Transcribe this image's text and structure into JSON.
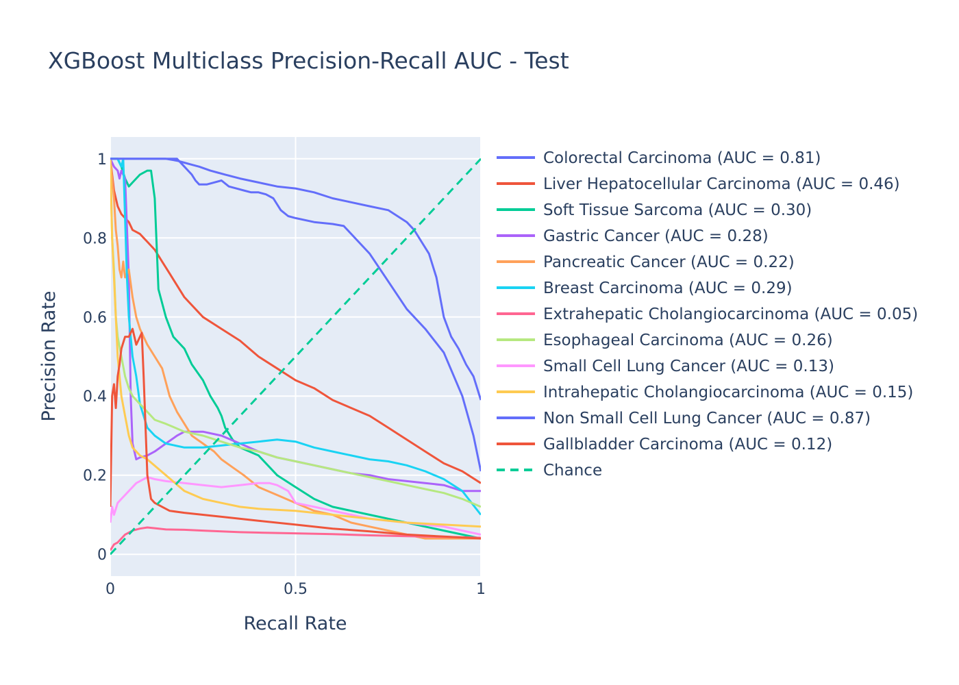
{
  "chart_data": {
    "type": "line",
    "title": "XGBoost Multiclass Precision-Recall AUC - Test",
    "xlabel": "Recall Rate",
    "ylabel": "Precision Rate",
    "xlim": [
      0,
      1
    ],
    "ylim": [
      -0.055,
      1.055
    ],
    "x_ticks": [
      {
        "v": 0,
        "label": "0"
      },
      {
        "v": 0.5,
        "label": "0.5"
      },
      {
        "v": 1,
        "label": "1"
      }
    ],
    "y_ticks": [
      {
        "v": 0,
        "label": "0"
      },
      {
        "v": 0.2,
        "label": "0.2"
      },
      {
        "v": 0.4,
        "label": "0.4"
      },
      {
        "v": 0.6,
        "label": "0.6"
      },
      {
        "v": 0.8,
        "label": "0.8"
      },
      {
        "v": 1,
        "label": "1"
      }
    ],
    "grid": true,
    "legend_position": "right",
    "plot_background": "#e5ecf6",
    "series": [
      {
        "name": "Colorectal Carcinoma (AUC = 0.81)",
        "color": "#636efa",
        "dash": false,
        "x": [
          0,
          0.05,
          0.1,
          0.15,
          0.18,
          0.2,
          0.22,
          0.24,
          0.27,
          0.29,
          0.31,
          0.35,
          0.4,
          0.45,
          0.5,
          0.55,
          0.6,
          0.65,
          0.7,
          0.75,
          0.8,
          0.82,
          0.84,
          0.86,
          0.88,
          0.9,
          0.92,
          0.94,
          0.96,
          0.98,
          1.0
        ],
        "y": [
          1,
          1,
          1,
          1,
          0.995,
          0.99,
          0.985,
          0.98,
          0.97,
          0.965,
          0.96,
          0.95,
          0.94,
          0.93,
          0.925,
          0.915,
          0.9,
          0.89,
          0.88,
          0.87,
          0.84,
          0.82,
          0.79,
          0.76,
          0.7,
          0.6,
          0.55,
          0.52,
          0.48,
          0.45,
          0.39
        ]
      },
      {
        "name": "Liver Hepatocellular Carcinoma (AUC = 0.46)",
        "color": "#ef553b",
        "dash": false,
        "x": [
          0,
          0.01,
          0.02,
          0.03,
          0.04,
          0.05,
          0.06,
          0.07,
          0.08,
          0.09,
          0.1,
          0.12,
          0.14,
          0.16,
          0.18,
          0.2,
          0.25,
          0.3,
          0.35,
          0.4,
          0.45,
          0.5,
          0.55,
          0.6,
          0.65,
          0.7,
          0.75,
          0.8,
          0.85,
          0.9,
          0.95,
          1.0
        ],
        "y": [
          1,
          0.92,
          0.88,
          0.86,
          0.85,
          0.84,
          0.82,
          0.815,
          0.81,
          0.8,
          0.79,
          0.77,
          0.74,
          0.71,
          0.68,
          0.65,
          0.6,
          0.57,
          0.54,
          0.5,
          0.47,
          0.44,
          0.42,
          0.39,
          0.37,
          0.35,
          0.32,
          0.29,
          0.26,
          0.23,
          0.21,
          0.18
        ]
      },
      {
        "name": "Soft Tissue Sarcoma (AUC = 0.30)",
        "color": "#00cc96",
        "dash": false,
        "x": [
          0,
          0.02,
          0.03,
          0.04,
          0.05,
          0.06,
          0.08,
          0.1,
          0.11,
          0.12,
          0.13,
          0.15,
          0.17,
          0.2,
          0.22,
          0.25,
          0.27,
          0.29,
          0.3,
          0.31,
          0.33,
          0.35,
          0.4,
          0.45,
          0.5,
          0.55,
          0.6,
          0.65,
          0.7,
          0.75,
          0.8,
          0.85,
          0.9,
          0.95,
          1.0
        ],
        "y": [
          1,
          1,
          0.98,
          0.95,
          0.93,
          0.94,
          0.96,
          0.97,
          0.97,
          0.9,
          0.67,
          0.6,
          0.55,
          0.52,
          0.48,
          0.44,
          0.4,
          0.37,
          0.35,
          0.32,
          0.29,
          0.27,
          0.25,
          0.2,
          0.17,
          0.14,
          0.12,
          0.11,
          0.1,
          0.09,
          0.08,
          0.07,
          0.06,
          0.05,
          0.04
        ]
      },
      {
        "name": "Gastric Cancer (AUC = 0.28)",
        "color": "#ab63fa",
        "dash": false,
        "x": [
          0,
          0.01,
          0.02,
          0.025,
          0.03,
          0.04,
          0.05,
          0.055,
          0.06,
          0.07,
          0.08,
          0.1,
          0.12,
          0.15,
          0.18,
          0.2,
          0.25,
          0.3,
          0.35,
          0.4,
          0.45,
          0.5,
          0.55,
          0.6,
          0.65,
          0.7,
          0.75,
          0.8,
          0.85,
          0.9,
          0.95,
          1.0
        ],
        "y": [
          1,
          0.98,
          0.97,
          0.95,
          0.97,
          0.95,
          0.7,
          0.4,
          0.28,
          0.24,
          0.245,
          0.25,
          0.26,
          0.28,
          0.3,
          0.31,
          0.31,
          0.3,
          0.28,
          0.26,
          0.245,
          0.235,
          0.225,
          0.215,
          0.205,
          0.2,
          0.19,
          0.185,
          0.18,
          0.175,
          0.16,
          0.16
        ]
      },
      {
        "name": "Pancreatic Cancer (AUC = 0.22)",
        "color": "#ffa15a",
        "dash": false,
        "x": [
          0,
          0.005,
          0.01,
          0.015,
          0.02,
          0.025,
          0.03,
          0.035,
          0.04,
          0.05,
          0.06,
          0.07,
          0.08,
          0.1,
          0.12,
          0.14,
          0.16,
          0.18,
          0.2,
          0.22,
          0.25,
          0.28,
          0.3,
          0.33,
          0.36,
          0.4,
          0.45,
          0.5,
          0.55,
          0.6,
          0.65,
          0.7,
          0.75,
          0.8,
          0.85,
          0.9,
          0.95,
          1.0
        ],
        "y": [
          1,
          0.95,
          0.9,
          0.82,
          0.78,
          0.72,
          0.7,
          0.74,
          0.7,
          0.72,
          0.65,
          0.6,
          0.57,
          0.53,
          0.5,
          0.47,
          0.4,
          0.36,
          0.33,
          0.3,
          0.28,
          0.26,
          0.24,
          0.22,
          0.2,
          0.17,
          0.15,
          0.13,
          0.11,
          0.1,
          0.08,
          0.07,
          0.06,
          0.05,
          0.04,
          0.04,
          0.04,
          0.04
        ]
      },
      {
        "name": "Breast Carcinoma (AUC = 0.29)",
        "color": "#19d3f3",
        "dash": false,
        "x": [
          0,
          0.02,
          0.03,
          0.035,
          0.04,
          0.045,
          0.05,
          0.055,
          0.06,
          0.07,
          0.08,
          0.1,
          0.12,
          0.15,
          0.2,
          0.25,
          0.3,
          0.35,
          0.4,
          0.45,
          0.5,
          0.55,
          0.6,
          0.65,
          0.7,
          0.75,
          0.8,
          0.85,
          0.9,
          0.95,
          1.0
        ],
        "y": [
          1,
          1,
          0.98,
          1.0,
          0.85,
          0.7,
          0.6,
          0.55,
          0.5,
          0.45,
          0.38,
          0.32,
          0.3,
          0.28,
          0.27,
          0.27,
          0.275,
          0.28,
          0.285,
          0.29,
          0.285,
          0.27,
          0.26,
          0.25,
          0.24,
          0.235,
          0.225,
          0.21,
          0.19,
          0.16,
          0.1
        ]
      },
      {
        "name": "Extrahepatic Cholangiocarcinoma (AUC = 0.05)",
        "color": "#ff6692",
        "dash": false,
        "x": [
          0,
          0.01,
          0.02,
          0.03,
          0.04,
          0.06,
          0.08,
          0.1,
          0.12,
          0.15,
          0.2,
          0.25,
          0.3,
          0.35,
          0.4,
          0.5,
          0.6,
          0.7,
          0.8,
          0.9,
          1.0
        ],
        "y": [
          0.01,
          0.025,
          0.03,
          0.04,
          0.05,
          0.06,
          0.065,
          0.068,
          0.066,
          0.063,
          0.062,
          0.06,
          0.058,
          0.056,
          0.055,
          0.053,
          0.051,
          0.048,
          0.046,
          0.044,
          0.042
        ]
      },
      {
        "name": "Esophageal Carcinoma (AUC = 0.26)",
        "color": "#b6e880",
        "dash": false,
        "x": [
          0,
          0.005,
          0.01,
          0.015,
          0.02,
          0.03,
          0.04,
          0.05,
          0.06,
          0.08,
          0.1,
          0.12,
          0.15,
          0.2,
          0.25,
          0.3,
          0.35,
          0.4,
          0.45,
          0.5,
          0.55,
          0.6,
          0.65,
          0.7,
          0.75,
          0.8,
          0.85,
          0.9,
          0.95,
          1.0
        ],
        "y": [
          1,
          0.8,
          0.72,
          0.6,
          0.55,
          0.5,
          0.45,
          0.42,
          0.4,
          0.38,
          0.36,
          0.34,
          0.33,
          0.31,
          0.3,
          0.285,
          0.27,
          0.26,
          0.245,
          0.235,
          0.225,
          0.215,
          0.205,
          0.195,
          0.185,
          0.175,
          0.165,
          0.155,
          0.14,
          0.12
        ]
      },
      {
        "name": "Small Cell Lung Cancer (AUC = 0.13)",
        "color": "#ff97ff",
        "dash": false,
        "x": [
          0,
          0.005,
          0.01,
          0.02,
          0.03,
          0.05,
          0.07,
          0.09,
          0.1,
          0.12,
          0.15,
          0.2,
          0.25,
          0.3,
          0.35,
          0.4,
          0.43,
          0.45,
          0.48,
          0.5,
          0.55,
          0.6,
          0.65,
          0.7,
          0.75,
          0.8,
          0.85,
          0.9,
          0.95,
          1.0
        ],
        "y": [
          0.08,
          0.12,
          0.1,
          0.13,
          0.14,
          0.16,
          0.18,
          0.19,
          0.195,
          0.19,
          0.185,
          0.18,
          0.175,
          0.17,
          0.175,
          0.18,
          0.18,
          0.175,
          0.16,
          0.13,
          0.12,
          0.11,
          0.1,
          0.09,
          0.085,
          0.08,
          0.075,
          0.07,
          0.06,
          0.05
        ]
      },
      {
        "name": "Intrahepatic Cholangiocarcinoma (AUC = 0.15)",
        "color": "#fecb52",
        "dash": false,
        "x": [
          0,
          0.005,
          0.01,
          0.015,
          0.02,
          0.03,
          0.04,
          0.05,
          0.06,
          0.08,
          0.1,
          0.15,
          0.2,
          0.25,
          0.3,
          0.35,
          0.4,
          0.5,
          0.6,
          0.7,
          0.8,
          0.9,
          1.0
        ],
        "y": [
          1,
          0.8,
          0.7,
          0.6,
          0.5,
          0.4,
          0.35,
          0.3,
          0.27,
          0.25,
          0.24,
          0.2,
          0.16,
          0.14,
          0.13,
          0.12,
          0.115,
          0.11,
          0.1,
          0.09,
          0.08,
          0.075,
          0.07
        ]
      },
      {
        "name": "Non Small Cell Lung Cancer (AUC = 0.87)",
        "color": "#636efa",
        "dash": false,
        "x": [
          0,
          0.05,
          0.1,
          0.15,
          0.18,
          0.2,
          0.21,
          0.22,
          0.23,
          0.24,
          0.26,
          0.28,
          0.3,
          0.32,
          0.34,
          0.36,
          0.38,
          0.4,
          0.42,
          0.44,
          0.46,
          0.48,
          0.5,
          0.55,
          0.6,
          0.63,
          0.65,
          0.7,
          0.75,
          0.8,
          0.85,
          0.9,
          0.95,
          0.98,
          1.0
        ],
        "y": [
          1,
          1,
          1,
          1,
          1,
          0.98,
          0.97,
          0.96,
          0.945,
          0.935,
          0.935,
          0.94,
          0.945,
          0.93,
          0.925,
          0.92,
          0.915,
          0.915,
          0.91,
          0.9,
          0.87,
          0.855,
          0.85,
          0.84,
          0.835,
          0.83,
          0.81,
          0.76,
          0.69,
          0.62,
          0.57,
          0.51,
          0.4,
          0.3,
          0.21
        ]
      },
      {
        "name": "Gallbladder Carcinoma (AUC = 0.12)",
        "color": "#ef553b",
        "dash": false,
        "x": [
          0,
          0.005,
          0.01,
          0.015,
          0.02,
          0.025,
          0.03,
          0.04,
          0.05,
          0.06,
          0.065,
          0.07,
          0.08,
          0.085,
          0.09,
          0.1,
          0.11,
          0.12,
          0.14,
          0.16,
          0.2,
          0.25,
          0.3,
          0.4,
          0.5,
          0.6,
          0.7,
          0.8,
          0.9,
          1.0
        ],
        "y": [
          0.12,
          0.4,
          0.43,
          0.37,
          0.45,
          0.48,
          0.52,
          0.55,
          0.55,
          0.57,
          0.55,
          0.53,
          0.55,
          0.56,
          0.45,
          0.2,
          0.14,
          0.13,
          0.12,
          0.11,
          0.105,
          0.1,
          0.095,
          0.085,
          0.075,
          0.065,
          0.058,
          0.05,
          0.045,
          0.04
        ]
      },
      {
        "name": "Chance",
        "color": "#00cc96",
        "dash": true,
        "x": [
          0,
          1
        ],
        "y": [
          0,
          1
        ]
      }
    ]
  }
}
